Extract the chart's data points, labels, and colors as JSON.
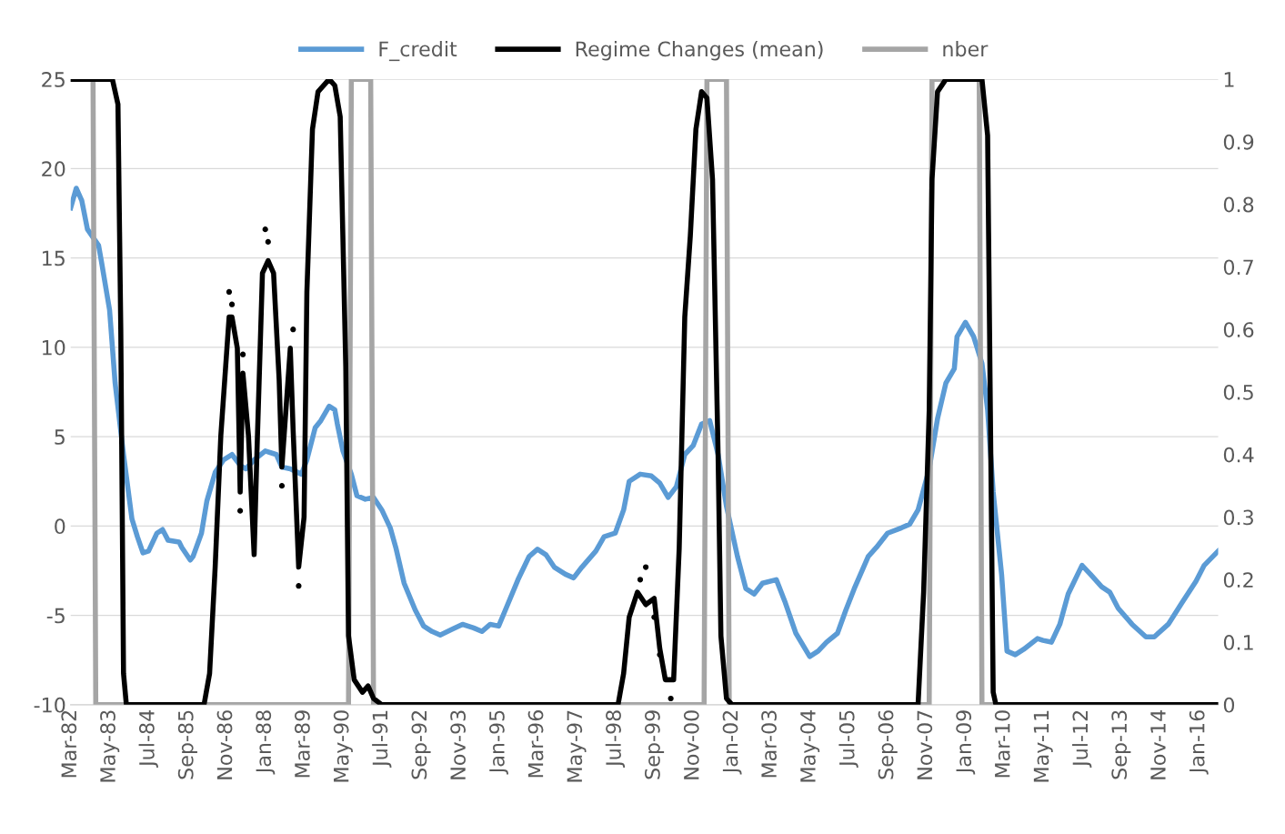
{
  "chart_data": {
    "type": "line",
    "legend": "top",
    "grid": "y",
    "xlim": [
      "1982-03",
      "2016-08"
    ],
    "xticks": [
      {
        "value": "1982-03",
        "label": "Mar-82"
      },
      {
        "value": "1983-05",
        "label": "May-83"
      },
      {
        "value": "1984-07",
        "label": "Jul-84"
      },
      {
        "value": "1985-09",
        "label": "Sep-85"
      },
      {
        "value": "1986-11",
        "label": "Nov-86"
      },
      {
        "value": "1988-01",
        "label": "Jan-88"
      },
      {
        "value": "1989-03",
        "label": "Mar-89"
      },
      {
        "value": "1990-05",
        "label": "May-90"
      },
      {
        "value": "1991-07",
        "label": "Jul-91"
      },
      {
        "value": "1992-09",
        "label": "Sep-92"
      },
      {
        "value": "1993-11",
        "label": "Nov-93"
      },
      {
        "value": "1995-01",
        "label": "Jan-95"
      },
      {
        "value": "1996-03",
        "label": "Mar-96"
      },
      {
        "value": "1997-05",
        "label": "May-97"
      },
      {
        "value": "1998-07",
        "label": "Jul-98"
      },
      {
        "value": "1999-09",
        "label": "Sep-99"
      },
      {
        "value": "2000-11",
        "label": "Nov-00"
      },
      {
        "value": "2002-01",
        "label": "Jan-02"
      },
      {
        "value": "2003-03",
        "label": "Mar-03"
      },
      {
        "value": "2004-05",
        "label": "May-04"
      },
      {
        "value": "2005-07",
        "label": "Jul-05"
      },
      {
        "value": "2006-09",
        "label": "Sep-06"
      },
      {
        "value": "2007-11",
        "label": "Nov-07"
      },
      {
        "value": "2009-01",
        "label": "Jan-09"
      },
      {
        "value": "2010-03",
        "label": "Mar-10"
      },
      {
        "value": "2011-05",
        "label": "May-11"
      },
      {
        "value": "2012-07",
        "label": "Jul-12"
      },
      {
        "value": "2013-09",
        "label": "Sep-13"
      },
      {
        "value": "2014-11",
        "label": "Nov-14"
      },
      {
        "value": "2016-01",
        "label": "Jan-16"
      }
    ],
    "ylim": [
      -10,
      25
    ],
    "yticks": [
      -10,
      -5,
      0,
      5,
      10,
      15,
      20,
      25
    ],
    "y2lim": [
      0,
      1
    ],
    "y2ticks": [
      0,
      0.1,
      0.2,
      0.3,
      0.4,
      0.5,
      0.6,
      0.7,
      0.8,
      0.9,
      1
    ],
    "series": [
      {
        "name": "F_credit",
        "color": "#5b9bd5",
        "x": [
          "1982-03",
          "1982-05",
          "1982-07",
          "1982-09",
          "1983-01",
          "1983-02",
          "1983-05",
          "1983-07",
          "1983-10",
          "1984-01",
          "1984-03",
          "1984-05",
          "1984-07",
          "1984-10",
          "1984-12",
          "1985-02",
          "1985-06",
          "1985-07",
          "1985-10",
          "1985-11",
          "1986-02",
          "1986-04",
          "1986-07",
          "1986-10",
          "1987-01",
          "1987-04",
          "1987-06",
          "1987-09",
          "1988-01",
          "1988-05",
          "1988-07",
          "1988-10",
          "1989-02",
          "1989-04",
          "1989-07",
          "1989-09",
          "1989-12",
          "1990-02",
          "1990-03",
          "1990-05",
          "1990-08",
          "1990-10",
          "1991-01",
          "1991-04",
          "1991-07",
          "1991-10",
          "1991-12",
          "1992-03",
          "1992-07",
          "1992-10",
          "1993-01",
          "1993-04",
          "1993-08",
          "1993-12",
          "1994-04",
          "1994-07",
          "1994-10",
          "1995-01",
          "1995-04",
          "1995-08",
          "1995-12",
          "1996-03",
          "1996-06",
          "1996-09",
          "1997-01",
          "1997-04",
          "1997-07",
          "1997-12",
          "1998-03",
          "1998-07",
          "1998-10",
          "1998-12",
          "1999-04",
          "1999-08",
          "1999-11",
          "2000-02",
          "2000-05",
          "2000-08",
          "2000-11",
          "2001-02",
          "2001-05",
          "2001-08",
          "2001-11",
          "2002-03",
          "2002-06",
          "2002-09",
          "2002-12",
          "2003-05",
          "2003-08",
          "2003-12",
          "2004-05",
          "2004-08",
          "2004-11",
          "2005-03",
          "2005-06",
          "2005-09",
          "2006-02",
          "2006-05",
          "2006-09",
          "2007-02",
          "2007-05",
          "2007-08",
          "2007-12",
          "2008-03",
          "2008-06",
          "2008-09",
          "2008-10",
          "2009-01",
          "2009-04",
          "2009-07",
          "2009-09",
          "2009-11",
          "2010-02",
          "2010-04",
          "2010-07",
          "2010-10",
          "2011-03",
          "2011-05",
          "2011-08",
          "2011-11",
          "2012-02",
          "2012-07",
          "2012-10",
          "2013-02",
          "2013-05",
          "2013-08",
          "2014-01",
          "2014-06",
          "2014-09",
          "2015-02",
          "2015-07",
          "2015-12",
          "2016-03",
          "2016-08"
        ],
        "values": [
          17.8,
          18.9,
          18.2,
          16.6,
          15.7,
          14.8,
          12.1,
          8.0,
          4.0,
          0.4,
          -0.6,
          -1.5,
          -1.4,
          -0.4,
          -0.2,
          -0.8,
          -0.9,
          -1.2,
          -1.9,
          -1.7,
          -0.4,
          1.4,
          3.0,
          3.7,
          4.0,
          3.4,
          3.2,
          3.7,
          4.2,
          4.0,
          3.3,
          3.2,
          2.9,
          3.7,
          5.5,
          5.9,
          6.7,
          6.5,
          5.7,
          4.2,
          2.9,
          1.7,
          1.5,
          1.6,
          0.9,
          -0.1,
          -1.2,
          -3.2,
          -4.7,
          -5.6,
          -5.9,
          -6.1,
          -5.8,
          -5.5,
          -5.7,
          -5.9,
          -5.5,
          -5.6,
          -4.5,
          -3.0,
          -1.7,
          -1.3,
          -1.6,
          -2.3,
          -2.7,
          -2.9,
          -2.3,
          -1.4,
          -0.6,
          -0.4,
          0.9,
          2.5,
          2.9,
          2.8,
          2.4,
          1.6,
          2.2,
          4.0,
          4.5,
          5.7,
          5.9,
          4.0,
          1.1,
          -1.7,
          -3.5,
          -3.8,
          -3.2,
          -3.0,
          -4.2,
          -6.0,
          -7.3,
          -7.0,
          -6.5,
          -6.0,
          -4.7,
          -3.5,
          -1.7,
          -1.2,
          -0.4,
          -0.1,
          0.1,
          0.9,
          3.2,
          6.0,
          8.0,
          8.8,
          10.6,
          11.4,
          10.6,
          9.1,
          6.5,
          1.9,
          -2.7,
          -7.0,
          -7.2,
          -6.9,
          -6.3,
          -6.4,
          -6.5,
          -5.5,
          -3.8,
          -2.2,
          -2.7,
          -3.4,
          -3.7,
          -4.6,
          -5.5,
          -6.2,
          -6.2,
          -5.5,
          -4.3,
          -3.1,
          -2.2,
          -1.4
        ]
      },
      {
        "name": "Regime Changes (mean)",
        "color": "#000000",
        "axis": "y2",
        "x": [
          "1982-03",
          "1983-06",
          "1983-08",
          "1983-09",
          "1983-10",
          "1983-11",
          "1986-03",
          "1986-05",
          "1986-07",
          "1986-09",
          "1986-12",
          "1987-01",
          "1987-03",
          "1987-04",
          "1987-05",
          "1987-07",
          "1987-09",
          "1987-10",
          "1987-12",
          "1988-02",
          "1988-04",
          "1988-06",
          "1988-07",
          "1988-10",
          "1988-11",
          "1989-01",
          "1989-03",
          "1989-04",
          "1989-06",
          "1989-08",
          "1989-12",
          "1990-02",
          "1990-04",
          "1990-06",
          "1990-07",
          "1990-09",
          "1990-12",
          "1991-02",
          "1991-04",
          "1991-07",
          "1998-08",
          "1998-10",
          "1998-12",
          "1999-03",
          "1999-06",
          "1999-09",
          "1999-11",
          "2000-01",
          "2000-04",
          "2000-06",
          "2000-08",
          "2000-10",
          "2000-12",
          "2001-02",
          "2001-04",
          "2001-06",
          "2001-08",
          "2001-09",
          "2001-11",
          "2002-01",
          "2007-08",
          "2007-10",
          "2007-12",
          "2008-01",
          "2008-03",
          "2008-06",
          "2009-07",
          "2009-09",
          "2009-10",
          "2009-11",
          "2009-12",
          "2016-08"
        ],
        "values": [
          1,
          1,
          0.96,
          0.6,
          0.05,
          0,
          0,
          0.05,
          0.22,
          0.43,
          0.62,
          0.62,
          0.57,
          0.34,
          0.53,
          0.43,
          0.24,
          0.4,
          0.69,
          0.71,
          0.69,
          0.52,
          0.38,
          0.57,
          0.44,
          0.22,
          0.3,
          0.66,
          0.92,
          0.98,
          1,
          0.99,
          0.94,
          0.54,
          0.11,
          0.04,
          0.02,
          0.03,
          0.01,
          0,
          0,
          0.05,
          0.14,
          0.18,
          0.16,
          0.17,
          0.09,
          0.04,
          0.04,
          0.25,
          0.62,
          0.75,
          0.92,
          0.98,
          0.97,
          0.84,
          0.4,
          0.11,
          0.01,
          0,
          0,
          0.18,
          0.47,
          0.84,
          0.98,
          1,
          1,
          0.91,
          0.47,
          0.02,
          0,
          0
        ]
      },
      {
        "color": "#000000",
        "type": "scatter",
        "marker": "circle",
        "axis": "y2",
        "x": [
          "1986-12",
          "1987-01",
          "1987-04",
          "1987-05",
          "1988-01",
          "1988-02",
          "1988-07",
          "1988-11",
          "1989-01",
          "1999-04",
          "1999-06",
          "1999-09",
          "1999-11",
          "2000-03"
        ],
        "values": [
          0.66,
          0.64,
          0.31,
          0.56,
          0.76,
          0.74,
          0.35,
          0.6,
          0.19,
          0.2,
          0.22,
          0.14,
          0.08,
          0.01
        ]
      },
      {
        "name": "nber",
        "color": "#a5a5a5",
        "axis": "y2",
        "x": [
          "1982-03",
          "1982-11",
          "1982-12",
          "1990-07",
          "1990-08",
          "1991-03",
          "1991-04",
          "2001-03",
          "2001-04",
          "2001-11",
          "2001-12",
          "2007-12",
          "2008-01",
          "2009-06",
          "2009-07",
          "2016-08"
        ],
        "values": [
          1,
          1,
          0,
          0,
          1,
          1,
          0,
          0,
          1,
          1,
          0,
          0,
          1,
          1,
          0,
          0
        ]
      }
    ]
  }
}
